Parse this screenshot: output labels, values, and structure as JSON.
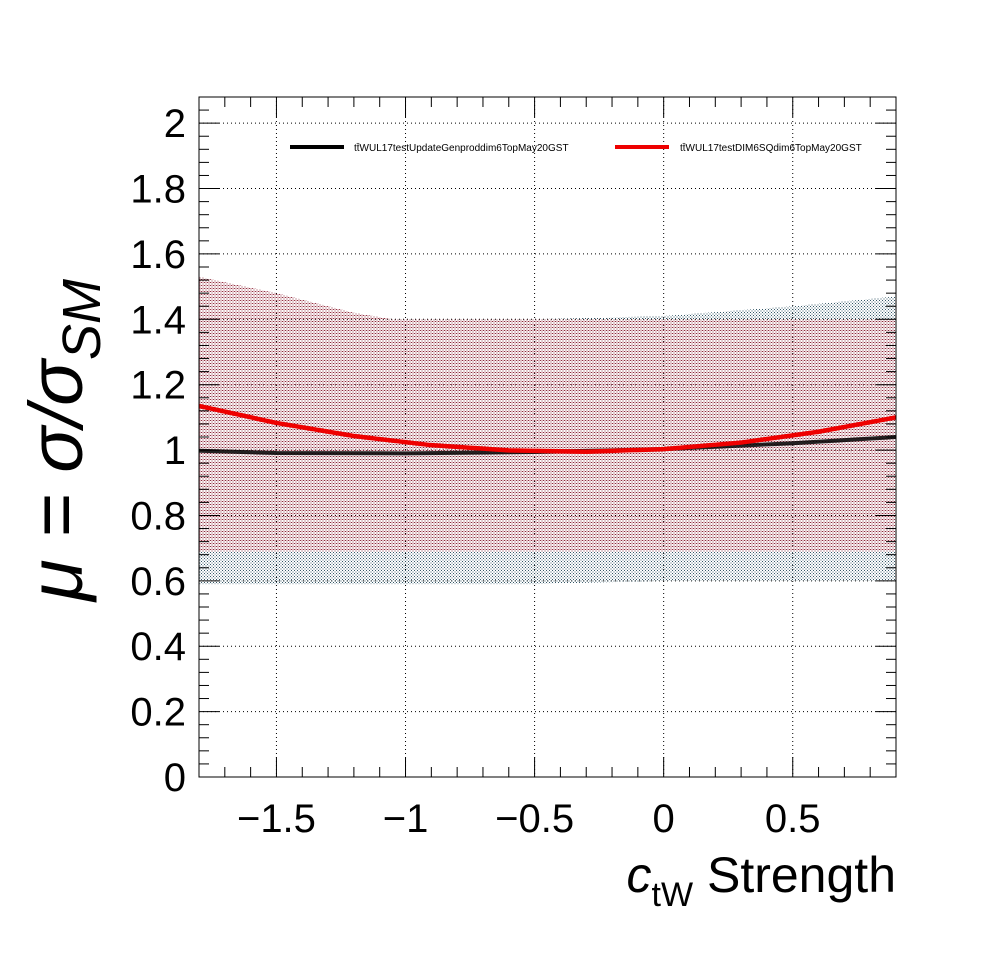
{
  "chart_data": {
    "type": "line",
    "title": "",
    "ylabel": {
      "main": "μ = σ/σ",
      "sub": "SM"
    },
    "xlabel": {
      "pre": "c",
      "sub": "tW",
      "post": " Strength"
    },
    "xlim": [
      -1.8,
      0.9
    ],
    "ylim": [
      0,
      2.08
    ],
    "xticks": [
      -1.5,
      -1,
      -0.5,
      0,
      0.5
    ],
    "xtick_labels": [
      "−1.5",
      "−1",
      "−0.5",
      "0",
      "0.5"
    ],
    "yticks": [
      0,
      0.2,
      0.4,
      0.6,
      0.8,
      1,
      1.2,
      1.4,
      1.6,
      1.8,
      2
    ],
    "ytick_labels": [
      "0",
      "0.2",
      "0.4",
      "0.6",
      "0.8",
      "1",
      "1.2",
      "1.4",
      "1.6",
      "1.8",
      "2"
    ],
    "grid": true,
    "legend_position": "top",
    "series": [
      {
        "name": "tt̄WUL17testUpdateGenproddim6TopMay20GST",
        "color": "#000000",
        "x": [
          -1.8,
          -1.5,
          -1.0,
          -0.5,
          0.0,
          0.5,
          0.9
        ],
        "y": [
          0.998,
          0.991,
          0.99,
          0.994,
          1.003,
          1.021,
          1.04
        ],
        "band": {
          "color": "#3a6272",
          "x": [
            -1.8,
            -1.05,
            -0.5,
            0.0,
            0.5,
            0.9
          ],
          "low": [
            0.59,
            0.59,
            0.59,
            0.6,
            0.6,
            0.6
          ],
          "high": [
            1.4,
            1.4,
            1.4,
            1.41,
            1.44,
            1.47
          ]
        }
      },
      {
        "name": "tt̄WUL17testDIM6SQdim6TopMay20GST",
        "color": "#ee0000",
        "x": [
          -1.8,
          -1.5,
          -1.2,
          -0.9,
          -0.6,
          -0.3,
          0.0,
          0.3,
          0.6,
          0.9
        ],
        "y": [
          1.135,
          1.083,
          1.043,
          1.015,
          0.999,
          0.995,
          1.003,
          1.023,
          1.056,
          1.1
        ],
        "band": {
          "color": "#9a3040",
          "x": [
            -1.8,
            -1.5,
            -1.2,
            -1.05,
            -0.5,
            0.0,
            0.5,
            0.9
          ],
          "low": [
            0.69,
            0.69,
            0.69,
            0.69,
            0.69,
            0.69,
            0.69,
            0.69
          ],
          "high": [
            1.53,
            1.48,
            1.42,
            1.4,
            1.4,
            1.4,
            1.4,
            1.4
          ]
        }
      }
    ]
  }
}
